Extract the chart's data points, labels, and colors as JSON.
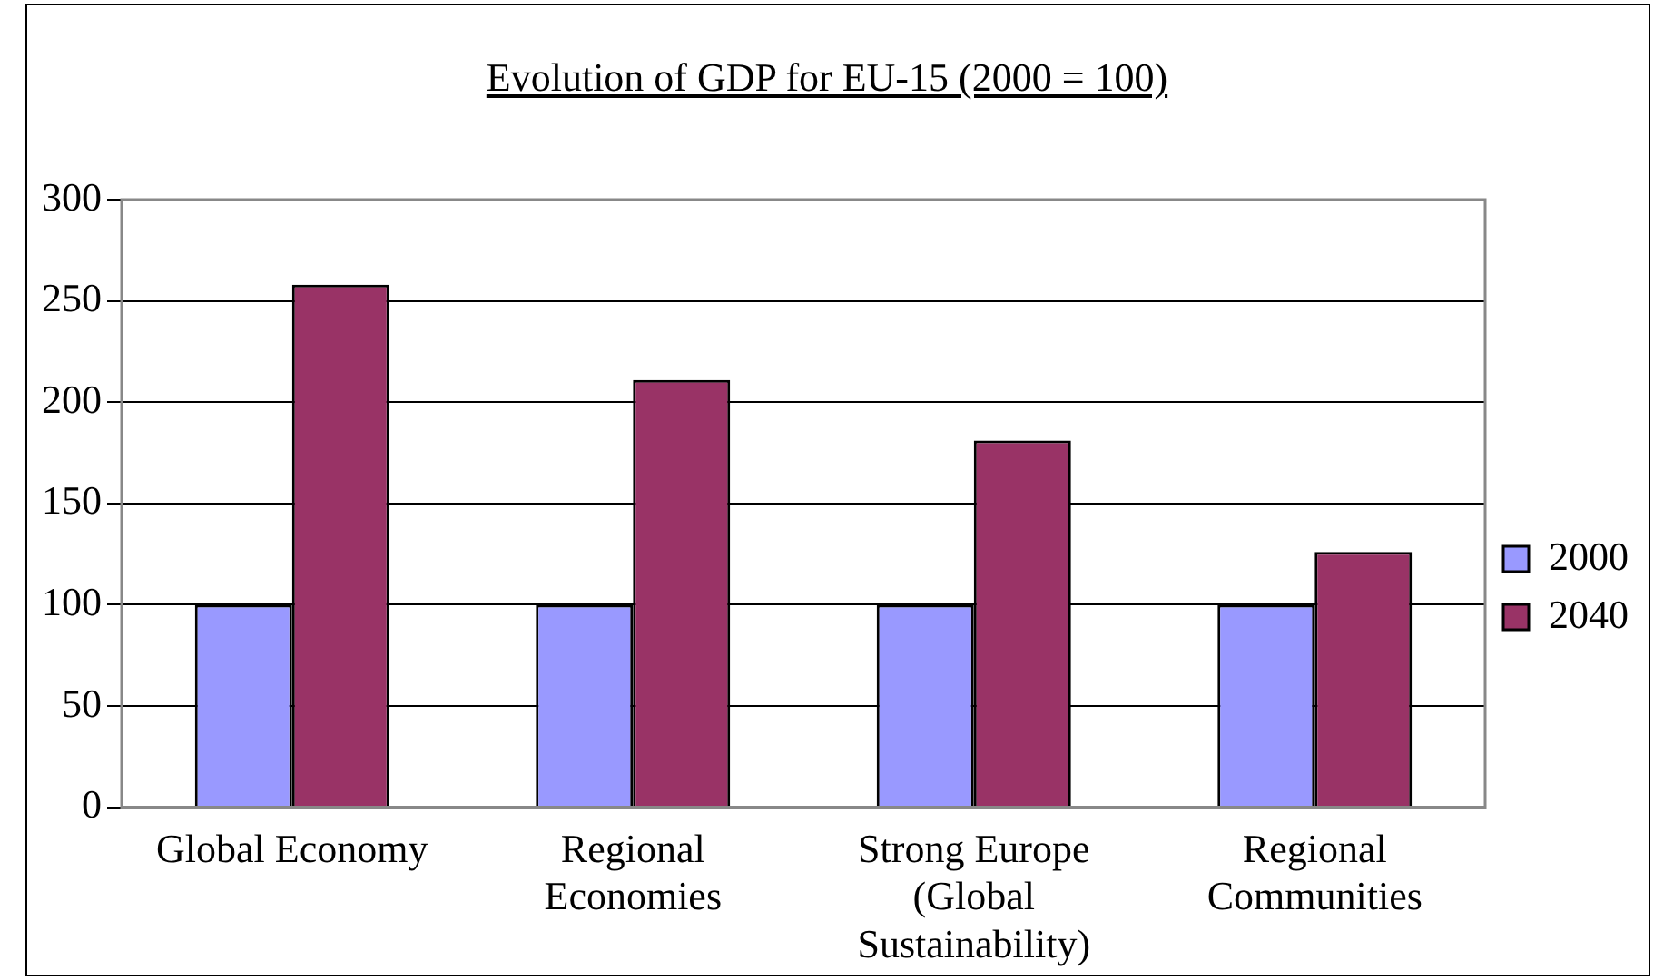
{
  "chart_data": {
    "type": "bar",
    "title": "Evolution of GDP for EU-15 (2000 = 100)",
    "categories": [
      "Global Economy",
      "Regional Economies",
      "Strong Europe (Global Sustainability)",
      "Regional Communities"
    ],
    "series": [
      {
        "name": "2000",
        "color": "#9999ff",
        "values": [
          100,
          100,
          100,
          100
        ]
      },
      {
        "name": "2040",
        "color": "#993366",
        "values": [
          258,
          211,
          181,
          126
        ]
      }
    ],
    "ylim": [
      0,
      300
    ],
    "yticks": [
      0,
      50,
      100,
      150,
      200,
      250,
      300
    ],
    "grid": "y",
    "legend": "right"
  }
}
